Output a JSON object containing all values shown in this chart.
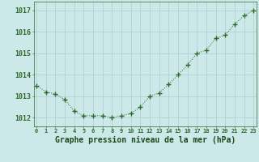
{
  "x": [
    0,
    1,
    2,
    3,
    4,
    5,
    6,
    7,
    8,
    9,
    10,
    11,
    12,
    13,
    14,
    15,
    16,
    17,
    18,
    19,
    20,
    21,
    22,
    23
  ],
  "y": [
    1013.5,
    1013.2,
    1013.1,
    1012.85,
    1012.3,
    1012.1,
    1012.1,
    1012.1,
    1012.0,
    1012.1,
    1012.2,
    1012.5,
    1013.0,
    1013.15,
    1013.55,
    1014.0,
    1014.45,
    1015.0,
    1015.15,
    1015.7,
    1015.85,
    1016.35,
    1016.75,
    1017.0
  ],
  "line_color": "#2d6a2d",
  "marker": "+",
  "marker_size": 4,
  "bg_color": "#cce8e8",
  "grid_color": "#aacece",
  "xlabel": "Graphe pression niveau de la mer (hPa)",
  "xlabel_fontsize": 7,
  "ytick_fontsize": 6,
  "xtick_fontsize": 5,
  "yticks": [
    1012,
    1013,
    1014,
    1015,
    1016,
    1017
  ],
  "xticks": [
    0,
    1,
    2,
    3,
    4,
    5,
    6,
    7,
    8,
    9,
    10,
    11,
    12,
    13,
    14,
    15,
    16,
    17,
    18,
    19,
    20,
    21,
    22,
    23
  ],
  "ylim": [
    1011.6,
    1017.4
  ],
  "xlim": [
    -0.3,
    23.3
  ],
  "text_color": "#1a4a1a",
  "axis_color": "#2d6a2d",
  "tick_color": "#2d6a2d"
}
